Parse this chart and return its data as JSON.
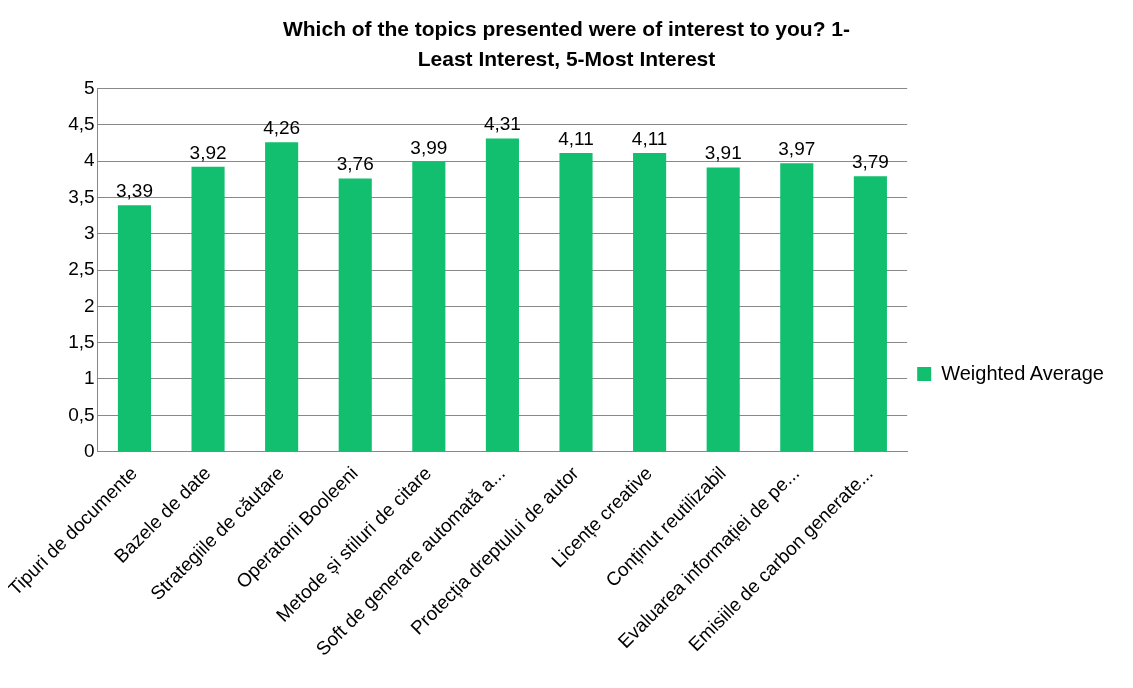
{
  "chart_data": {
    "type": "bar",
    "title": "Which of the topics presented were of interest to you? 1-Least Interest, 5-Most Interest",
    "categories": [
      "Tipuri de documente",
      "Bazele de date",
      "Strategiile de căutare",
      "Operatorii Booleeni",
      "Metode și stiluri de citare",
      "Soft de generare automată a...",
      "Protecția dreptului de autor",
      "Licențe creative",
      "Conținut reutilizabil",
      "Evaluarea informației de pe...",
      "Emisiile de carbon generate..."
    ],
    "series": [
      {
        "name": "Weighted Average",
        "color": "#12bf6e",
        "values": [
          3.39,
          3.92,
          4.26,
          3.76,
          3.99,
          4.31,
          4.11,
          4.11,
          3.91,
          3.97,
          3.79
        ],
        "value_labels": [
          "3,39",
          "3,92",
          "4,26",
          "3,76",
          "3,99",
          "4,31",
          "4,11",
          "4,11",
          "3,91",
          "3,97",
          "3,79"
        ]
      }
    ],
    "ylim": [
      0,
      5
    ],
    "yticks": [
      0,
      {
        "value": 0.5,
        "label": "0,5"
      },
      1,
      {
        "value": 1.5,
        "label": "1,5"
      },
      2,
      {
        "value": 2.5,
        "label": "2,5"
      },
      3,
      {
        "value": 3.5,
        "label": "3,5"
      },
      4,
      {
        "value": 4.5,
        "label": "4,5"
      },
      5
    ],
    "grid": "y",
    "legend": "right"
  }
}
